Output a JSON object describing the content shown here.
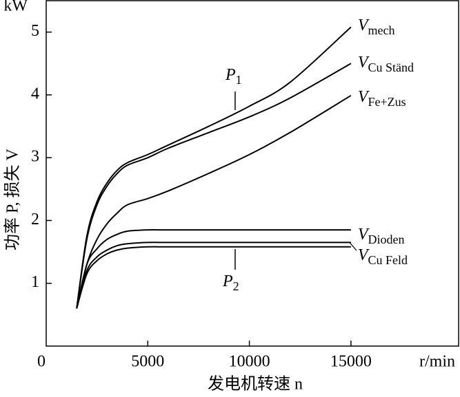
{
  "chart_data": {
    "type": "line",
    "y_label": "功率 P, 损失 V",
    "x_label": "发电机转速 n",
    "x_unit": "r/min",
    "y_unit": "kW",
    "annotations": [
      {
        "symbol": "P",
        "subscript": "1"
      },
      {
        "symbol": "P",
        "subscript": "2"
      }
    ],
    "x": [
      1500,
      2000,
      2500,
      3000,
      3500,
      4000,
      5000,
      6000,
      8000,
      10000,
      12000,
      15000
    ],
    "series": [
      {
        "name": "V",
        "subscript": "mech",
        "color": "#000000",
        "values": [
          0.6,
          1.75,
          2.3,
          2.6,
          2.8,
          2.92,
          3.05,
          3.2,
          3.5,
          3.82,
          4.2,
          5.08
        ]
      },
      {
        "name": "V",
        "subscript": "Cu Ständ",
        "color": "#000000",
        "values": [
          0.6,
          1.7,
          2.25,
          2.55,
          2.75,
          2.88,
          3.0,
          3.15,
          3.4,
          3.65,
          3.95,
          4.5
        ]
      },
      {
        "name": "V",
        "subscript": "Fe+Zus",
        "color": "#000000",
        "values": [
          0.6,
          1.3,
          1.7,
          1.95,
          2.12,
          2.25,
          2.35,
          2.47,
          2.75,
          3.05,
          3.4,
          3.99
        ]
      },
      {
        "name": "V",
        "subscript": "Dioden",
        "color": "#000000",
        "values": [
          0.6,
          1.3,
          1.55,
          1.7,
          1.78,
          1.83,
          1.85,
          1.85,
          1.85,
          1.85,
          1.85,
          1.85
        ]
      },
      {
        "name": "V",
        "subscript": "Cu Feld",
        "color": "#000000",
        "values": [
          0.6,
          1.2,
          1.42,
          1.53,
          1.6,
          1.63,
          1.65,
          1.65,
          1.65,
          1.65,
          1.65,
          1.65
        ]
      },
      {
        "color": "#000000",
        "values": [
          0.6,
          1.15,
          1.36,
          1.47,
          1.53,
          1.56,
          1.58,
          1.58,
          1.58,
          1.58,
          1.58,
          1.58
        ]
      }
    ],
    "xlim": [
      0,
      20300
    ],
    "ylim": [
      0,
      5.5
    ],
    "xticks": [
      0,
      5000,
      10000,
      15000
    ],
    "yticks": [
      1,
      2,
      3,
      4,
      5
    ],
    "grid": false
  }
}
